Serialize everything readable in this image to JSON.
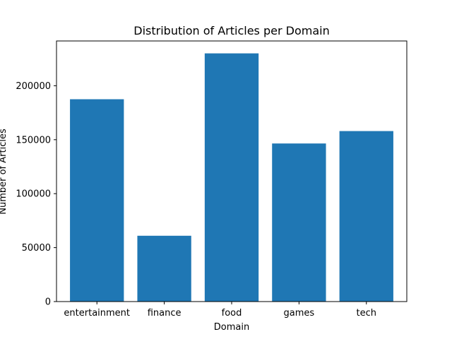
{
  "chart_data": {
    "type": "bar",
    "title": "Distribution of Articles per Domain",
    "xlabel": "Domain",
    "ylabel": "Number of Articles",
    "categories": [
      "entertainment",
      "finance",
      "food",
      "games",
      "tech"
    ],
    "values": [
      187500,
      61000,
      230000,
      146500,
      158000
    ],
    "ylim": [
      0,
      241500
    ],
    "yticks": [
      0,
      50000,
      100000,
      150000,
      200000
    ],
    "ytick_labels": [
      "0",
      "50000",
      "100000",
      "150000",
      "200000"
    ],
    "grid": false,
    "legend": "none",
    "bar_color": "#1f77b4"
  }
}
